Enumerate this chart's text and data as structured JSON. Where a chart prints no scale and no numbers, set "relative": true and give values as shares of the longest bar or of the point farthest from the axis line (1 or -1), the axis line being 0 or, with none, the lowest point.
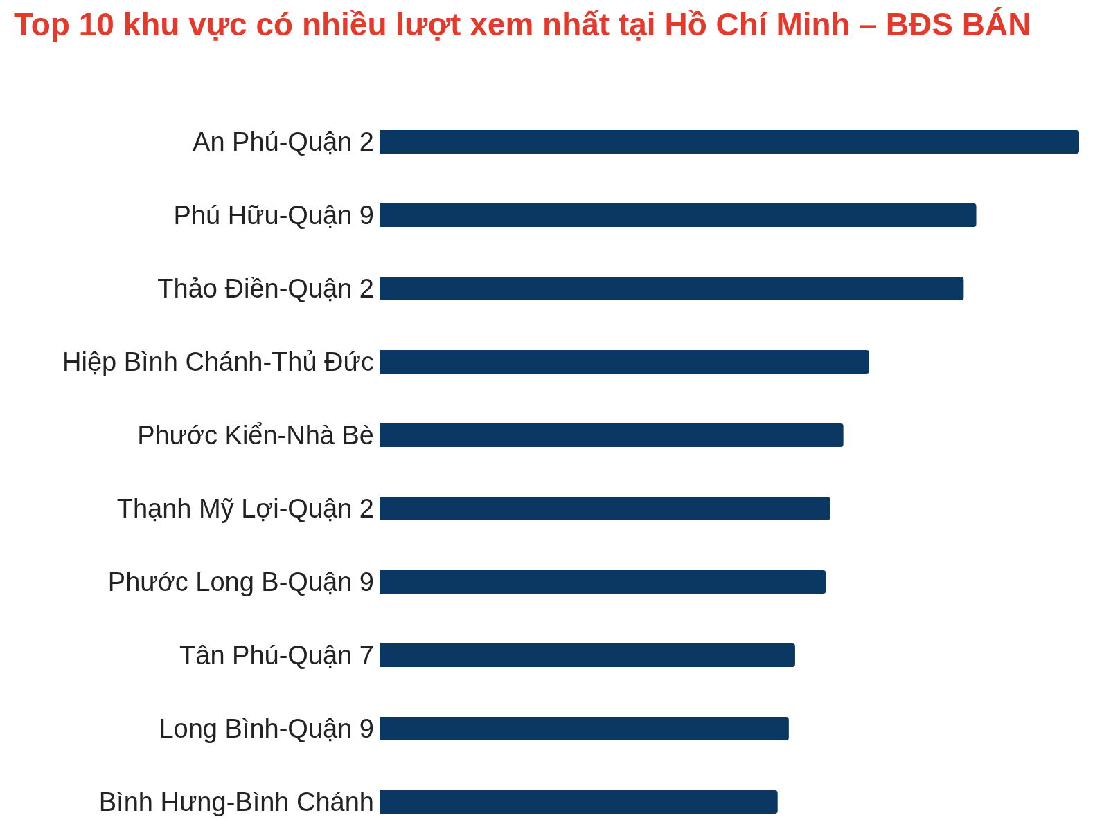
{
  "chart_data": {
    "type": "bar",
    "title": "Top 10 khu vực có nhiều lượt xem nhất tại Hồ Chí Minh – BĐS BÁN",
    "orientation": "horizontal",
    "relative": true,
    "color": "#0a3863",
    "categories": [
      "An Phú-Quận 2",
      "Phú Hữu-Quận 9",
      "Thảo Điền-Quận 2",
      "Hiệp Bình Chánh-Thủ Đức",
      "Phước Kiển-Nhà Bè",
      "Thạnh Mỹ Lợi-Quận 2",
      "Phước Long B-Quận 9",
      "Tân Phú-Quận 7",
      "Long Bình-Quận 9",
      "Bình Hưng-Bình Chánh"
    ],
    "values": [
      1,
      0.853,
      0.835,
      0.7,
      0.663,
      0.644,
      0.638,
      0.594,
      0.585,
      0.569
    ]
  }
}
